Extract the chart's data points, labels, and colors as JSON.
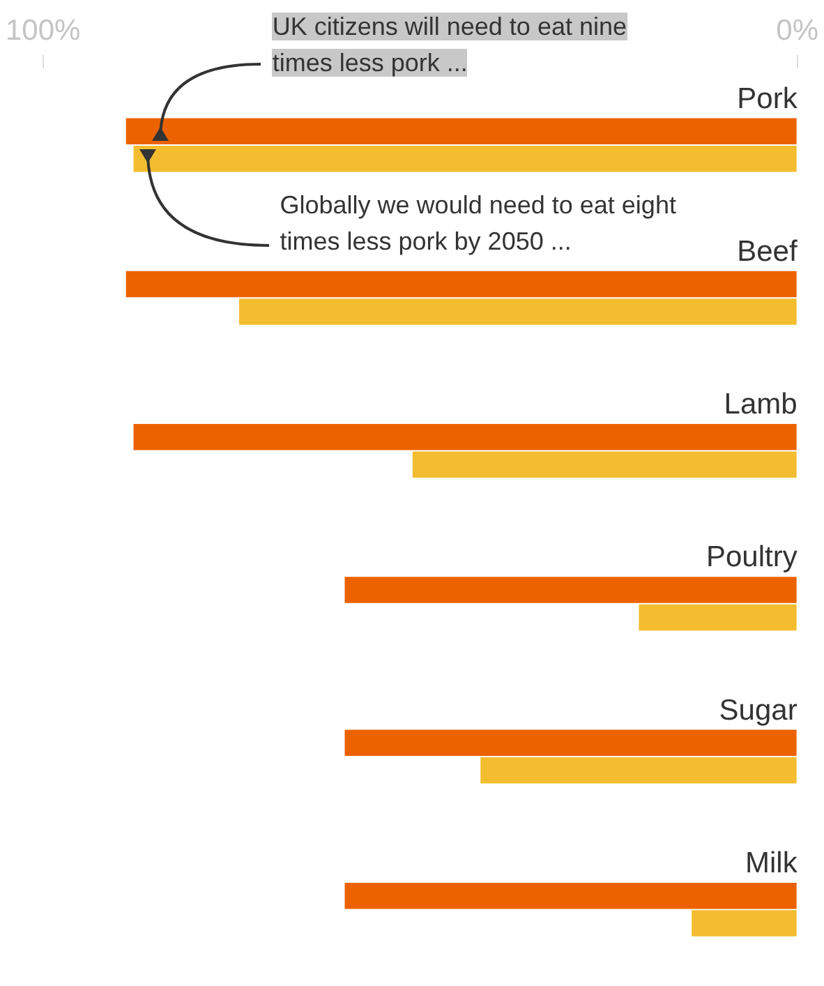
{
  "chart_data": {
    "type": "bar",
    "orientation": "horizontal",
    "categories": [
      "Pork",
      "Beef",
      "Lamb",
      "Poultry",
      "Sugar",
      "Milk"
    ],
    "series": [
      {
        "color": "#ec6200",
        "values": [
          89,
          89,
          88,
          60,
          60,
          60
        ]
      },
      {
        "color": "#f3bd2f",
        "values": [
          88,
          74,
          51,
          21,
          42,
          14
        ]
      }
    ],
    "xlim": [
      100,
      0
    ],
    "xticks": [
      {
        "value": 100,
        "label": "100%"
      },
      {
        "value": 0,
        "label": "0%"
      }
    ],
    "grid": false,
    "legend": false,
    "annotations": [
      "UK citizens will need to eat nine times less pork ...",
      "Globally we would need to eat eight times less pork by 2050 ..."
    ]
  }
}
